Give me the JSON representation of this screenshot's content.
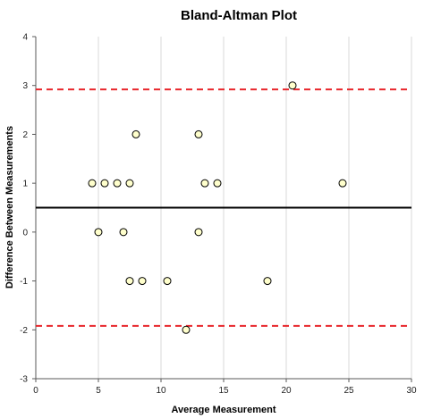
{
  "chart_data": {
    "type": "scatter",
    "title": "Bland-Altman Plot",
    "xlabel": "Average Measurement",
    "ylabel": "Difference Between Measurements",
    "xlim": [
      0,
      30
    ],
    "ylim": [
      -3,
      4
    ],
    "xticks": [
      0,
      5,
      10,
      15,
      20,
      25,
      30
    ],
    "yticks": [
      -3,
      -2,
      -1,
      0,
      1,
      2,
      3,
      4
    ],
    "grid": "vertical",
    "legend": "none",
    "mean_difference": 0.5,
    "upper_limit": 2.92,
    "lower_limit": -1.92,
    "colors": {
      "point_fill": "#ffffcc",
      "point_stroke": "#000000",
      "mean_line": "#000000",
      "limit_lines": "#e8262b",
      "grid": "#d9d9d9",
      "axis": "#595959"
    },
    "points": [
      {
        "x": 4.5,
        "y": 1
      },
      {
        "x": 5.5,
        "y": 1
      },
      {
        "x": 6.5,
        "y": 1
      },
      {
        "x": 7.5,
        "y": 1
      },
      {
        "x": 8,
        "y": 2
      },
      {
        "x": 13,
        "y": 2
      },
      {
        "x": 13.5,
        "y": 1
      },
      {
        "x": 14.5,
        "y": 1
      },
      {
        "x": 20.5,
        "y": 3
      },
      {
        "x": 24.5,
        "y": 1
      },
      {
        "x": 5,
        "y": 0
      },
      {
        "x": 7,
        "y": 0
      },
      {
        "x": 13,
        "y": 0
      },
      {
        "x": 7.5,
        "y": -1
      },
      {
        "x": 8.5,
        "y": -1
      },
      {
        "x": 10.5,
        "y": -1
      },
      {
        "x": 18.5,
        "y": -1
      },
      {
        "x": 12,
        "y": -2
      }
    ]
  }
}
